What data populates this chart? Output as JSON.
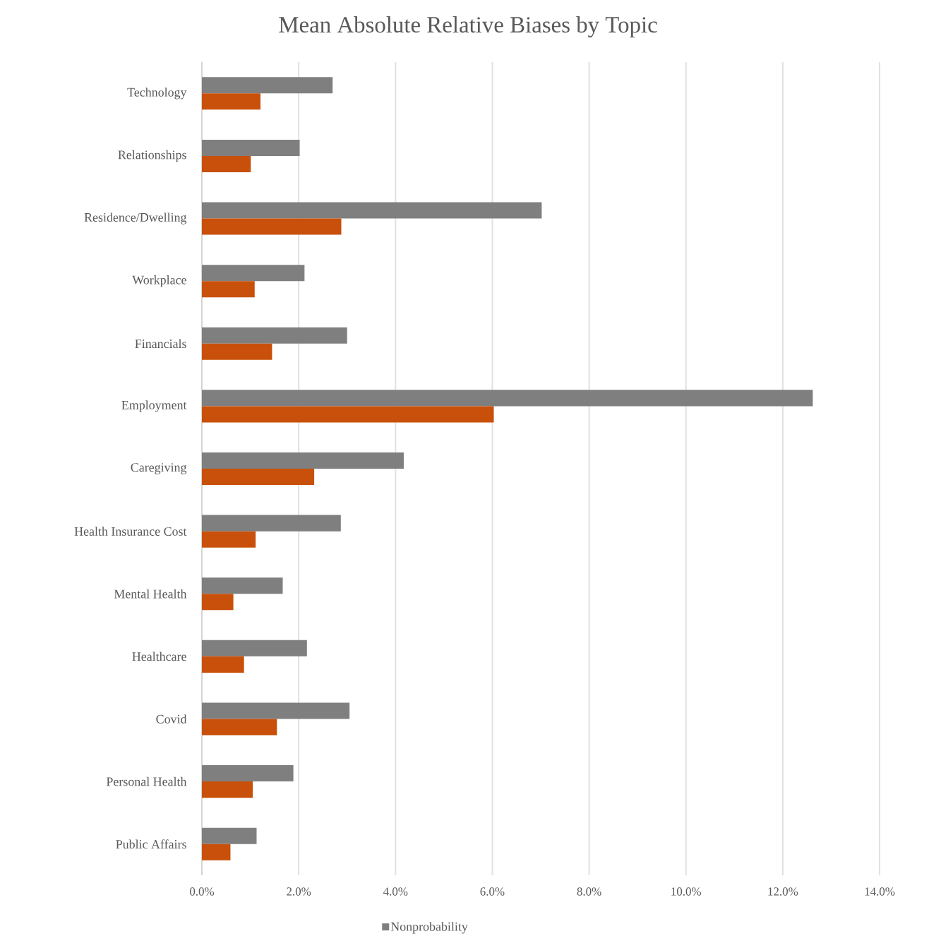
{
  "chart_data": {
    "type": "bar",
    "orientation": "horizontal",
    "title": "Mean Absolute Relative Biases by Topic",
    "categories": [
      "Technology",
      "Relationships",
      "Residence/Dwelling",
      "Workplace",
      "Financials",
      "Employment",
      "Caregiving",
      "Health Insurance Cost",
      "Mental Health",
      "Healthcare",
      "Covid",
      "Personal Health",
      "Public Affairs"
    ],
    "series": [
      {
        "name": "Nonprobability",
        "color": "#7f7f7f",
        "values": [
          2.7,
          2.02,
          7.02,
          2.12,
          3.0,
          12.62,
          4.17,
          2.87,
          1.67,
          2.17,
          3.05,
          1.89,
          1.13
        ]
      },
      {
        "color": "#c8500a",
        "values": [
          1.21,
          1.01,
          2.88,
          1.09,
          1.45,
          6.03,
          2.32,
          1.11,
          0.65,
          0.87,
          1.55,
          1.05,
          0.59
        ]
      }
    ],
    "xlim": [
      0,
      14
    ],
    "xticks": [
      {
        "value": 0,
        "label": "0.0%"
      },
      {
        "value": 2,
        "label": "2.0%"
      },
      {
        "value": 4,
        "label": "4.0%"
      },
      {
        "value": 6,
        "label": "6.0%"
      },
      {
        "value": 8,
        "label": "8.0%"
      },
      {
        "value": 10,
        "label": "10.0%"
      },
      {
        "value": 12,
        "label": "12.0%"
      },
      {
        "value": 14,
        "label": "14.0%"
      }
    ],
    "grid": "x",
    "legend": "bottom"
  }
}
